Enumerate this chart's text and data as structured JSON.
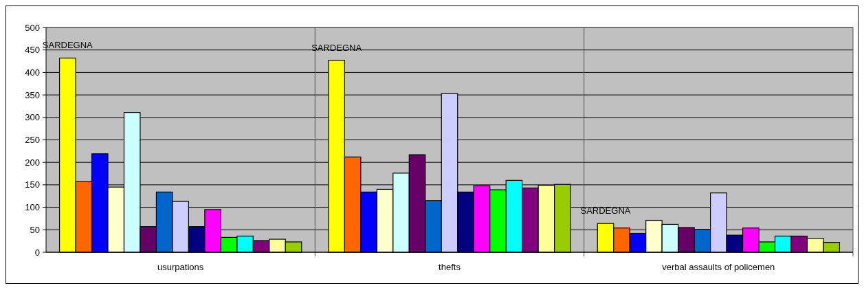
{
  "chart_data": {
    "type": "bar",
    "categories": [
      "usurpations",
      "thefts",
      "verbal assaults of policemen"
    ],
    "series": [
      {
        "color": "#ffff00",
        "values": [
          432,
          427,
          64
        ]
      },
      {
        "color": "#ff6600",
        "values": [
          157,
          212,
          54
        ]
      },
      {
        "color": "#0000ff",
        "values": [
          219,
          134,
          42
        ]
      },
      {
        "color": "#ffffcc",
        "values": [
          145,
          140,
          71
        ]
      },
      {
        "color": "#ccffff",
        "values": [
          311,
          176,
          62
        ]
      },
      {
        "color": "#660066",
        "values": [
          57,
          217,
          55
        ]
      },
      {
        "color": "#0066cc",
        "values": [
          134,
          115,
          51
        ]
      },
      {
        "color": "#ccccff",
        "values": [
          113,
          353,
          132
        ]
      },
      {
        "color": "#000080",
        "values": [
          57,
          134,
          38
        ]
      },
      {
        "color": "#ff00ff",
        "values": [
          95,
          148,
          54
        ]
      },
      {
        "color": "#00ff00",
        "values": [
          33,
          139,
          23
        ]
      },
      {
        "color": "#00ffff",
        "values": [
          36,
          160,
          36
        ]
      },
      {
        "color": "#800080",
        "values": [
          26,
          143,
          36
        ]
      },
      {
        "color": "#ffff99",
        "values": [
          29,
          149,
          31
        ]
      },
      {
        "color": "#99cc00",
        "values": [
          23,
          151,
          22
        ]
      }
    ],
    "ylim": [
      0,
      500
    ],
    "yticks": [
      0,
      50,
      100,
      150,
      200,
      250,
      300,
      350,
      400,
      450,
      500
    ],
    "grid": true,
    "annotations": [
      "SARDEGNA",
      "SARDEGNA",
      "SARDEGNA"
    ]
  }
}
